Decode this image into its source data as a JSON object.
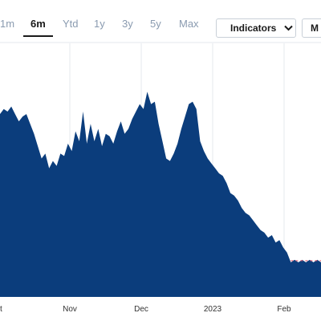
{
  "range_tabs": [
    "1m",
    "6m",
    "Ytd",
    "1y",
    "3y",
    "5y",
    "Max"
  ],
  "active_range": "6m",
  "indicators_label": "Indicators",
  "more_label": "M",
  "chart_data": {
    "type": "area",
    "x_labels": [
      "t",
      "Nov",
      "Dec",
      "2023",
      "Feb"
    ],
    "color": "#0b3d7c",
    "dashed_line_color": "#e0556b",
    "y_range": [
      0,
      1
    ],
    "grid": "vertical",
    "values": [
      0.74,
      0.76,
      0.75,
      0.77,
      0.74,
      0.71,
      0.73,
      0.74,
      0.7,
      0.66,
      0.61,
      0.56,
      0.58,
      0.52,
      0.55,
      0.53,
      0.58,
      0.57,
      0.62,
      0.59,
      0.67,
      0.63,
      0.75,
      0.62,
      0.7,
      0.63,
      0.68,
      0.61,
      0.66,
      0.65,
      0.62,
      0.67,
      0.71,
      0.66,
      0.68,
      0.72,
      0.75,
      0.78,
      0.76,
      0.83,
      0.78,
      0.79,
      0.7,
      0.63,
      0.56,
      0.55,
      0.58,
      0.62,
      0.68,
      0.73,
      0.78,
      0.79,
      0.76,
      0.63,
      0.59,
      0.56,
      0.54,
      0.52,
      0.5,
      0.49,
      0.46,
      0.42,
      0.41,
      0.39,
      0.36,
      0.34,
      0.33,
      0.31,
      0.29,
      0.27,
      0.26,
      0.24,
      0.25,
      0.22,
      0.23,
      0.2,
      0.18,
      0.14,
      0.15,
      0.14,
      0.15,
      0.14,
      0.15,
      0.14,
      0.15,
      0.14
    ]
  }
}
